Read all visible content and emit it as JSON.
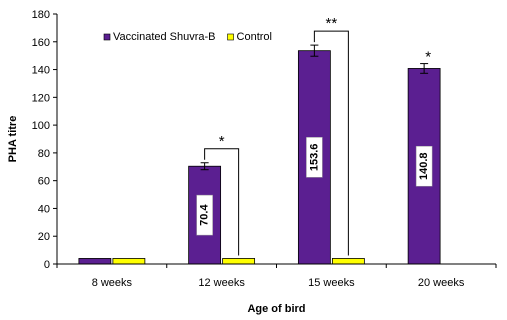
{
  "chart_data": {
    "type": "bar",
    "title": "",
    "xlabel": "Age of bird",
    "ylabel": "PHA titre",
    "categories": [
      "8 weeks",
      "12 weeks",
      "15 weeks",
      "20 weeks"
    ],
    "ylim": [
      0,
      180
    ],
    "yticks": [
      0,
      20,
      40,
      60,
      80,
      100,
      120,
      140,
      160,
      180
    ],
    "grid": false,
    "legend": "top-left",
    "series": [
      {
        "name": "Vaccinated Shuvra-B",
        "color": "#5b1f91",
        "values": [
          4,
          70.4,
          153.6,
          140.8
        ],
        "errors": [
          0,
          2.5,
          4,
          3.5
        ],
        "data_labels": [
          "",
          "70.4",
          "153.6",
          "140.8"
        ]
      },
      {
        "name": "Control",
        "color": "#ffff00",
        "values": [
          4,
          4,
          4,
          null
        ],
        "errors": [
          0,
          0,
          0,
          0
        ],
        "data_labels": [
          "",
          "",
          "",
          ""
        ]
      }
    ],
    "significance": [
      {
        "category": 1,
        "label": "*",
        "type": "bracket"
      },
      {
        "category": 2,
        "label": "**",
        "type": "bracket"
      },
      {
        "category": 3,
        "label": "*",
        "type": "above"
      }
    ]
  }
}
